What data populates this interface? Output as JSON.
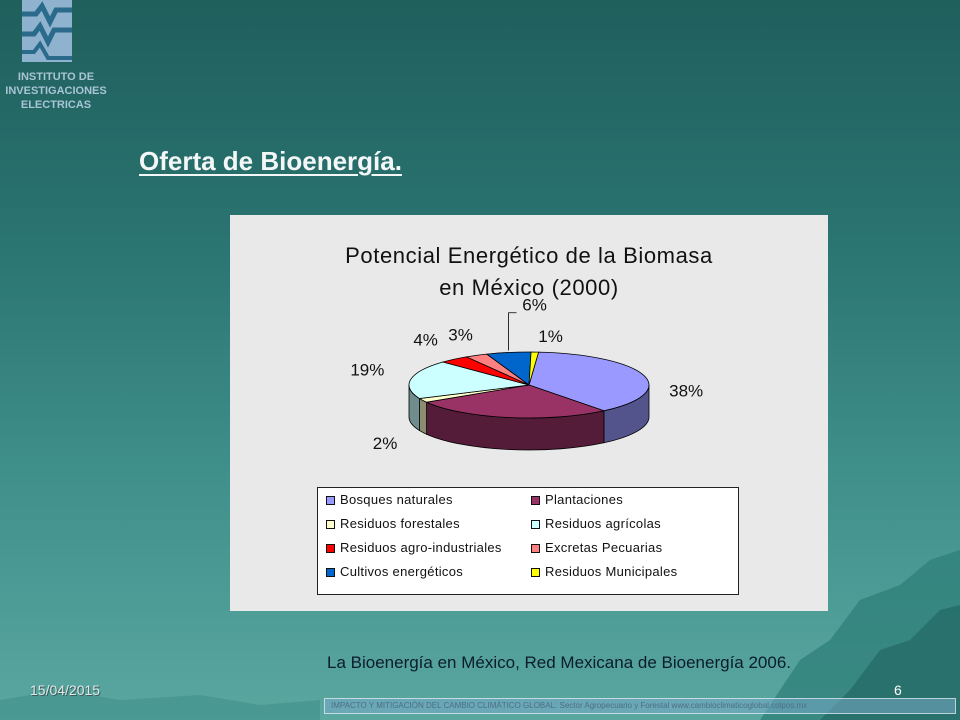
{
  "logo": {
    "lines": [
      "INSTITUTO DE",
      "INVESTIGACIONES",
      "ELECTRICAS"
    ]
  },
  "slide": {
    "title": "Oferta de Bioenergía.",
    "source": "La Bioenergía en México, Red Mexicana de Bioenergía 2006.",
    "date": "15/04/2015",
    "page_number": "6",
    "footer": "IMPACTO Y MITIGACIÓN DEL CAMBIO CLIMÁTICO GLOBAL: Sector Agropecuario y Forestal www.cambioclimaticoglobal.colpos.mx"
  },
  "chart_data": {
    "type": "pie",
    "title_lines": [
      "Potencial Energético de la Biomasa",
      "en México (2000)"
    ],
    "legend_position": "bottom",
    "series": [
      {
        "name": "Bosques naturales",
        "value": 38,
        "label": "38%",
        "color": "#9999ff"
      },
      {
        "name": "Plantaciones",
        "value": 27,
        "label": "27%",
        "color": "#993366"
      },
      {
        "name": "Residuos forestales",
        "value": 2,
        "label": "2%",
        "color": "#ffffcc"
      },
      {
        "name": "Residuos agrícolas",
        "value": 19,
        "label": "19%",
        "color": "#ccffff"
      },
      {
        "name": "Residuos agro-industriales",
        "value": 4,
        "label": "4%",
        "color": "#ff0000"
      },
      {
        "name": "Excretas Pecuarias",
        "value": 3,
        "label": "3%",
        "color": "#ff8080"
      },
      {
        "name": "Cultivos energéticos",
        "value": 6,
        "label": "6%",
        "color": "#0066cc"
      },
      {
        "name": "Residuos Municipales",
        "value": 1,
        "label": "1%",
        "color": "#ffff00"
      }
    ]
  }
}
